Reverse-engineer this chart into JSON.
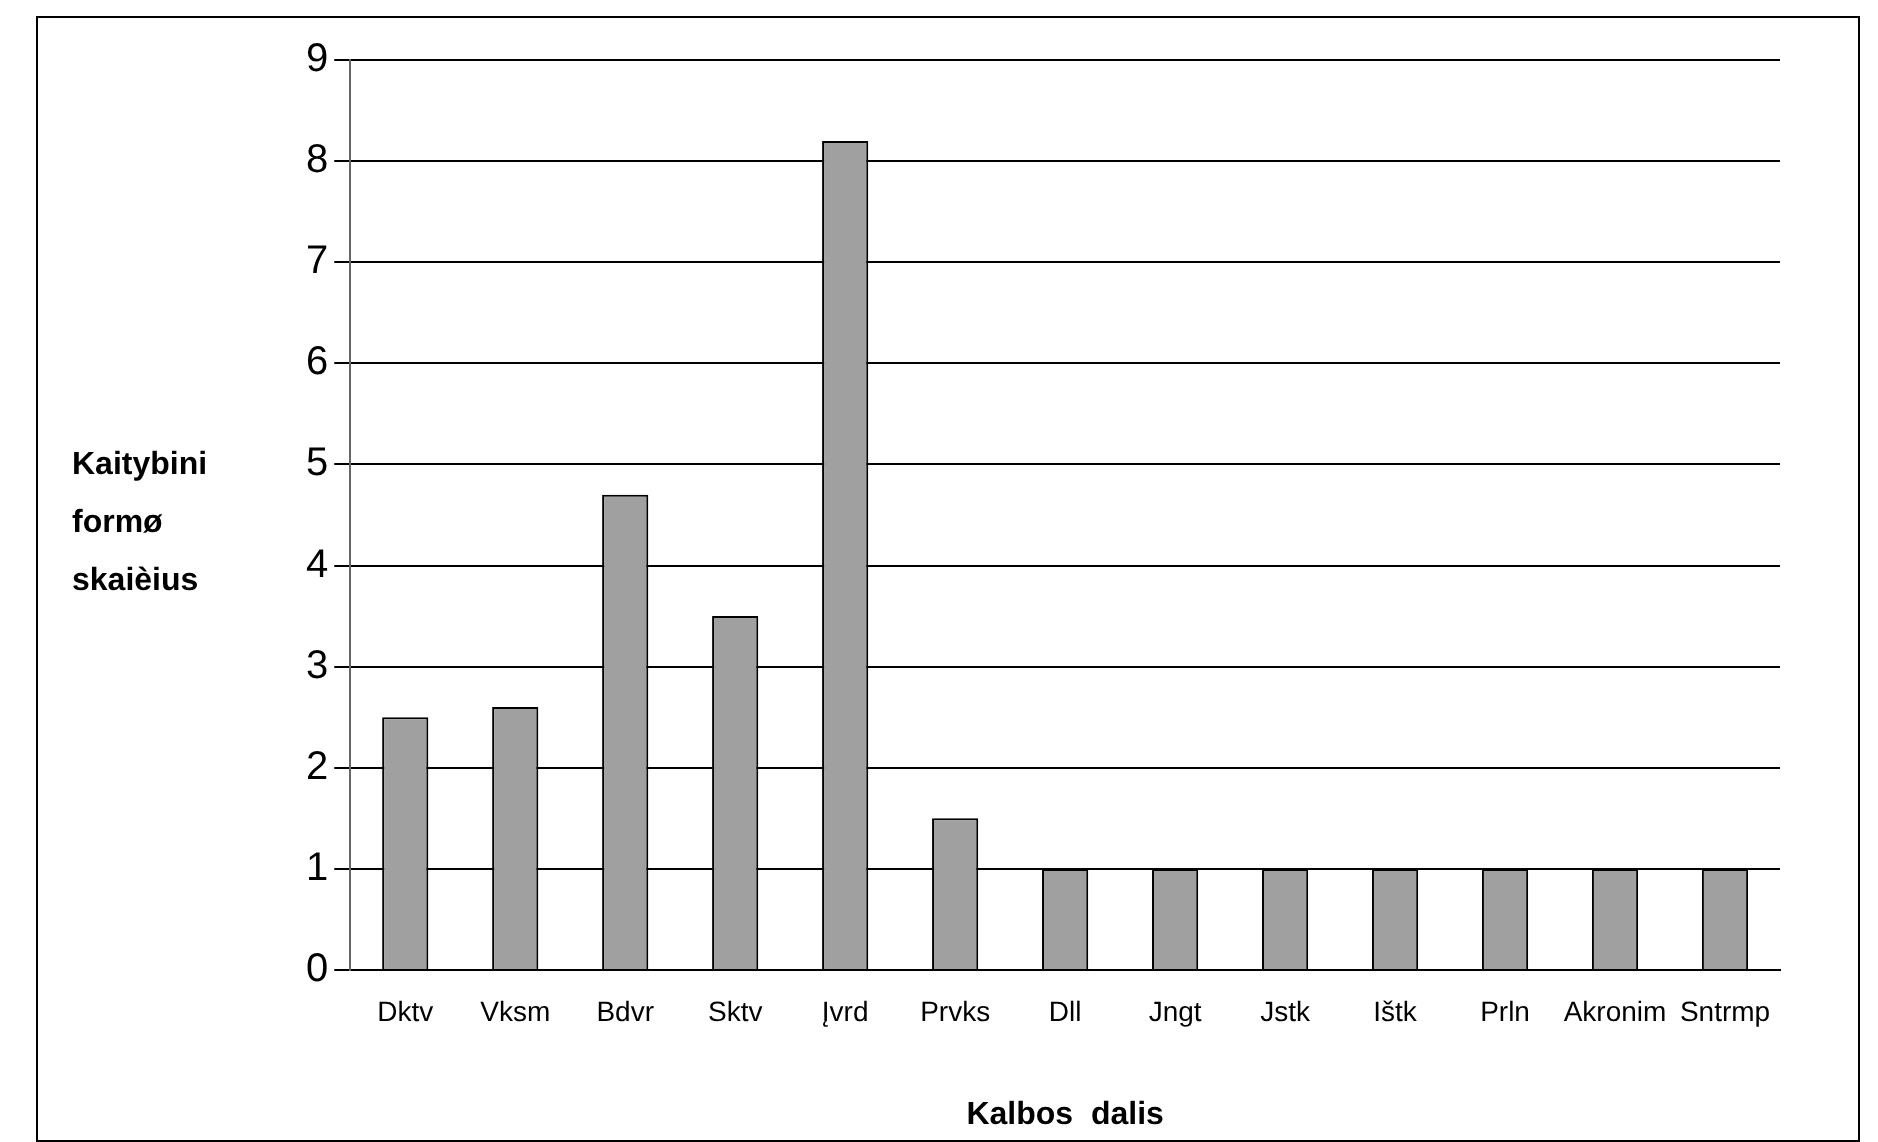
{
  "chart_data": {
    "type": "bar",
    "xlabel": "Kalbos  dalis",
    "ylabel": "Kaitybini formø skaièius",
    "categories": [
      "Dktv",
      "Vksm",
      "Bdvr",
      "Sktv",
      "Įvrd",
      "Prvks",
      "Dll",
      "Jngt",
      "Jstk",
      "Ištk",
      "Prln",
      "Akronim",
      "Sntrmp"
    ],
    "values": [
      2.5,
      2.6,
      4.7,
      3.5,
      8.2,
      1.5,
      1,
      1,
      1,
      1,
      1,
      1,
      1
    ],
    "color": "#a0a0a0",
    "ylim": [
      0,
      9
    ],
    "yticks": [
      0,
      1,
      2,
      3,
      4,
      5,
      6,
      7,
      8,
      9
    ],
    "grid": "y",
    "legend": false
  }
}
